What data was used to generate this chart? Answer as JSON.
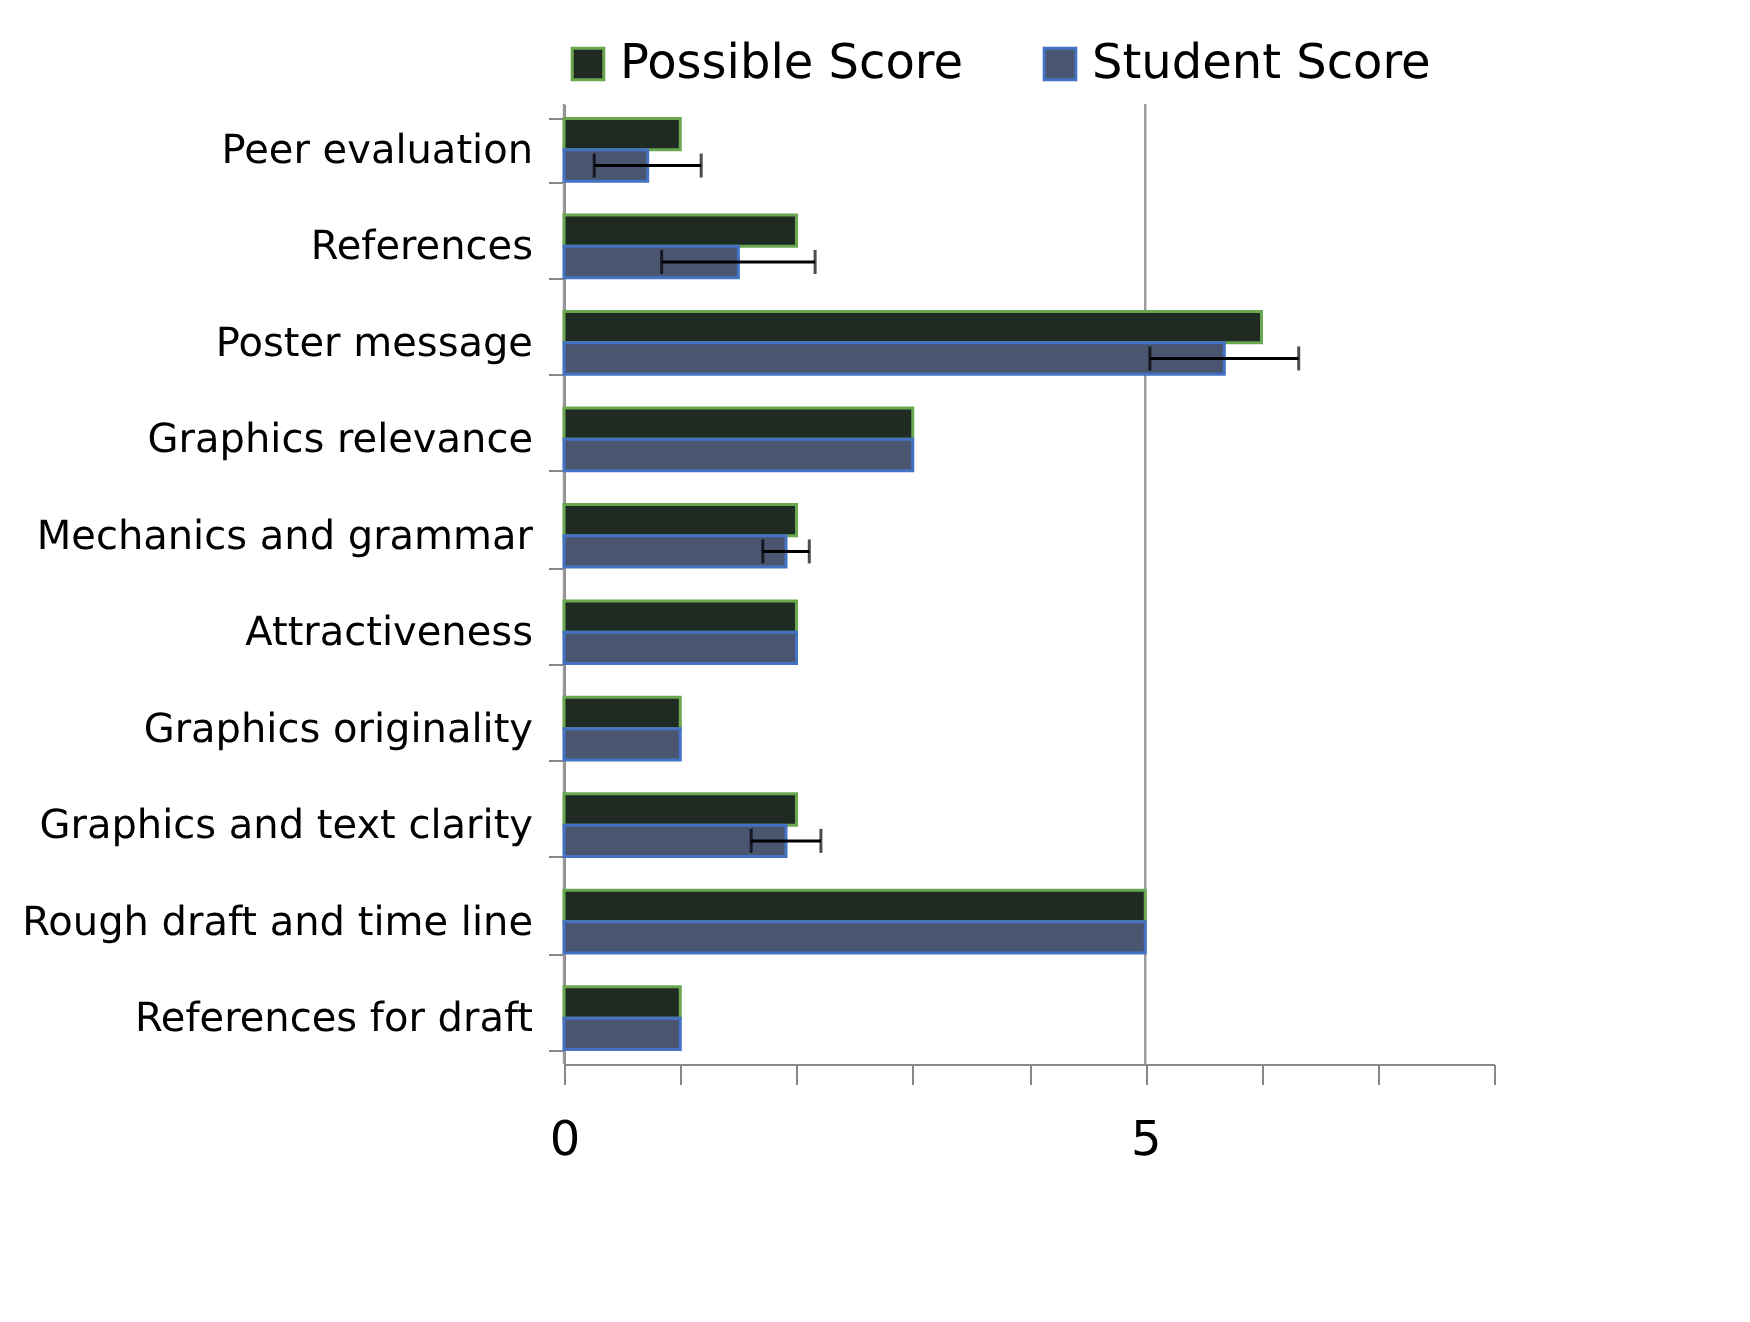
{
  "chart_data": {
    "type": "bar",
    "orientation": "horizontal",
    "categories": [
      "Peer evaluation",
      "References",
      "Poster message",
      "Graphics relevance",
      "Mechanics and grammar",
      "Attractiveness",
      "Graphics originality",
      "Graphics and text clarity",
      "Rough draft and time line",
      "References for draft"
    ],
    "series": [
      {
        "name": "Possible Score",
        "color": "#1f2b22",
        "values": [
          1,
          2,
          6,
          3,
          2,
          2,
          1,
          2,
          5,
          1
        ]
      },
      {
        "name": "Student Score",
        "color": "#4a5570",
        "values": [
          0.72,
          1.5,
          5.68,
          3,
          1.91,
          2,
          1,
          1.91,
          5,
          1
        ],
        "errors": [
          0.46,
          0.66,
          0.64,
          null,
          0.2,
          null,
          null,
          0.3,
          null,
          null
        ]
      }
    ],
    "xlim": [
      0,
      8
    ],
    "xticks": [
      0,
      {
        "value": 1,
        "label": null
      },
      {
        "value": 2,
        "label": null
      },
      {
        "value": 3,
        "label": null
      },
      {
        "value": 4,
        "label": null
      },
      5,
      {
        "value": 6,
        "label": null
      },
      {
        "value": 7,
        "label": null
      },
      {
        "value": 8,
        "label": null
      }
    ],
    "grid": "x",
    "legend": "top"
  }
}
